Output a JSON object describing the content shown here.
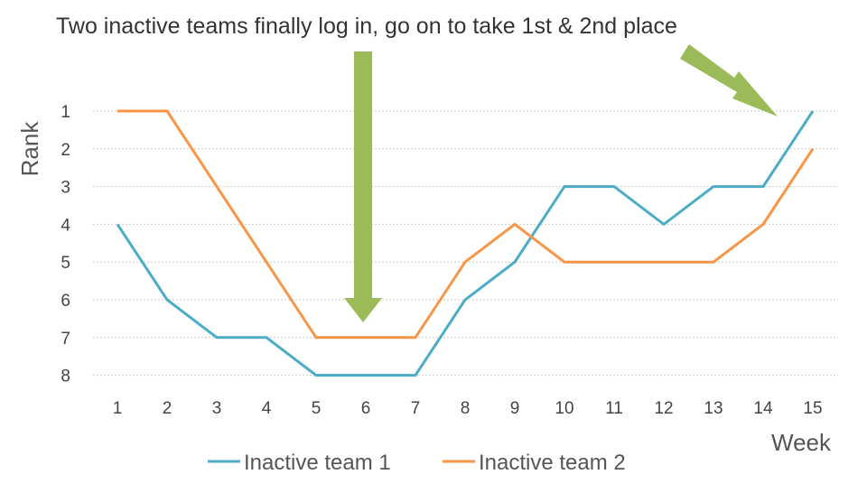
{
  "chart_data": {
    "type": "line",
    "title": "Two inactive teams finally log in, go on to take 1st & 2nd place",
    "xlabel": "Week",
    "ylabel": "Rank",
    "x": [
      1,
      2,
      3,
      4,
      5,
      6,
      7,
      8,
      9,
      10,
      11,
      12,
      13,
      14,
      15
    ],
    "y_ticks": [
      1,
      2,
      3,
      4,
      5,
      6,
      7,
      8
    ],
    "ylim": [
      1,
      8
    ],
    "y_inverted": true,
    "grid": true,
    "legend_position": "bottom",
    "series": [
      {
        "name": "Inactive team 1",
        "color": "#4BACC6",
        "values": [
          4,
          6,
          7,
          7,
          8,
          8,
          8,
          6,
          5,
          3,
          3,
          4,
          3,
          3,
          1
        ]
      },
      {
        "name": "Inactive team 2",
        "color": "#F79646",
        "values": [
          1,
          1,
          3,
          5,
          7,
          7,
          7,
          5,
          4,
          5,
          5,
          5,
          5,
          4,
          2
        ]
      }
    ],
    "annotations": [
      {
        "type": "arrow",
        "direction": "down",
        "color": "#9BBB59"
      },
      {
        "type": "arrow",
        "direction": "down-right",
        "color": "#9BBB59"
      }
    ]
  }
}
